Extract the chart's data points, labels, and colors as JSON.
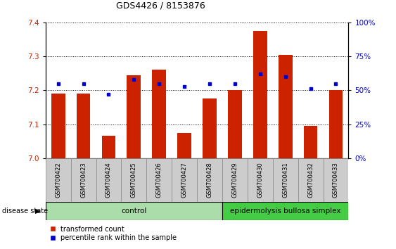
{
  "title": "GDS4426 / 8153876",
  "samples": [
    "GSM700422",
    "GSM700423",
    "GSM700424",
    "GSM700425",
    "GSM700426",
    "GSM700427",
    "GSM700428",
    "GSM700429",
    "GSM700430",
    "GSM700431",
    "GSM700432",
    "GSM700433"
  ],
  "red_values": [
    7.19,
    7.19,
    7.065,
    7.245,
    7.26,
    7.075,
    7.175,
    7.2,
    7.375,
    7.305,
    7.095,
    7.2
  ],
  "blue_values": [
    55,
    55,
    47,
    58,
    55,
    53,
    55,
    55,
    62,
    60,
    51,
    55
  ],
  "ylim": [
    7.0,
    7.4
  ],
  "ylim_right": [
    0,
    100
  ],
  "yticks_left": [
    7.0,
    7.1,
    7.2,
    7.3,
    7.4
  ],
  "yticks_right": [
    0,
    25,
    50,
    75,
    100
  ],
  "ytick_labels_right": [
    "0%",
    "25%",
    "50%",
    "75%",
    "100%"
  ],
  "control_samples": 7,
  "control_label": "control",
  "disease_label": "epidermolysis bullosa simplex",
  "legend_red": "transformed count",
  "legend_blue": "percentile rank within the sample",
  "disease_state_label": "disease state",
  "bar_color": "#cc2200",
  "dot_color": "#0000cc",
  "bg_color": "#ffffff",
  "tick_area_bg": "#cccccc",
  "control_bg": "#aaddaa",
  "disease_bg": "#44cc44",
  "bar_width": 0.55
}
